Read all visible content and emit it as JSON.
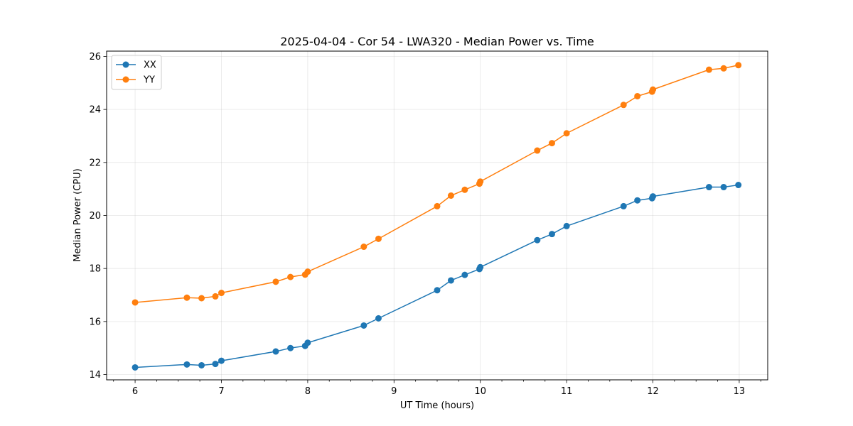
{
  "chart_data": {
    "type": "line",
    "title": "2025-04-04 - Cor 54 - LWA320 - Median Power vs. Time",
    "xlabel": "UT Time (hours)",
    "ylabel": "Median Power (CPU)",
    "xlim": [
      5.67,
      13.33
    ],
    "ylim": [
      13.8,
      26.2
    ],
    "xticks": [
      6,
      7,
      8,
      9,
      10,
      11,
      12,
      13
    ],
    "xticks_minor_step": 0.25,
    "yticks": [
      14,
      16,
      18,
      20,
      22,
      24,
      26
    ],
    "grid": true,
    "legend_position": "top-left",
    "series": [
      {
        "name": "XX",
        "color": "#1f77b4",
        "x": [
          6.0,
          6.6,
          6.77,
          6.93,
          7.0,
          7.63,
          7.8,
          7.97,
          8.0,
          8.65,
          8.82,
          9.5,
          9.66,
          9.82,
          9.99,
          10.0,
          10.66,
          10.83,
          11.0,
          11.66,
          11.82,
          11.99,
          12.0,
          12.65,
          12.82,
          12.99
        ],
        "y": [
          14.27,
          14.38,
          14.35,
          14.4,
          14.52,
          14.87,
          15.0,
          15.08,
          15.2,
          15.85,
          16.12,
          17.18,
          17.55,
          17.76,
          17.98,
          18.05,
          19.07,
          19.3,
          19.6,
          20.35,
          20.57,
          20.65,
          20.72,
          21.07,
          21.07,
          21.15
        ]
      },
      {
        "name": "YY",
        "color": "#ff7f0e",
        "x": [
          6.0,
          6.6,
          6.77,
          6.93,
          7.0,
          7.63,
          7.8,
          7.97,
          8.0,
          8.65,
          8.82,
          9.5,
          9.66,
          9.82,
          9.99,
          10.0,
          10.66,
          10.83,
          11.0,
          11.66,
          11.82,
          11.99,
          12.0,
          12.65,
          12.82,
          12.99
        ],
        "y": [
          16.72,
          16.9,
          16.88,
          16.95,
          17.08,
          17.5,
          17.68,
          17.77,
          17.88,
          18.82,
          19.12,
          20.35,
          20.75,
          20.97,
          21.2,
          21.28,
          22.45,
          22.73,
          23.1,
          24.17,
          24.5,
          24.67,
          24.75,
          25.5,
          25.55,
          25.67
        ]
      }
    ]
  }
}
